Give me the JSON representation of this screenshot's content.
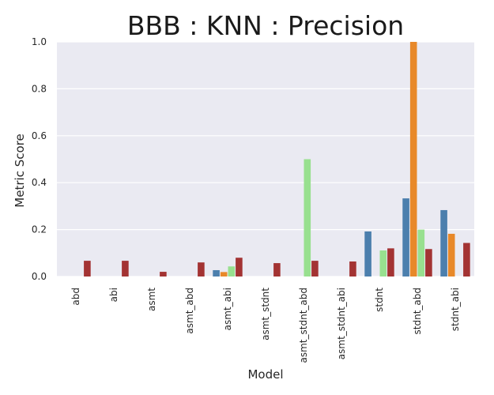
{
  "chart_data": {
    "type": "bar",
    "title": "BBB : KNN : Precision",
    "xlabel": "Model",
    "ylabel": "Metric Score",
    "ylim": [
      0,
      1.0
    ],
    "yticks": [
      "0.0",
      "0.2",
      "0.4",
      "0.6",
      "0.8",
      "1.0"
    ],
    "grid": true,
    "categories": [
      "abd",
      "abi",
      "asmt",
      "asmt_abd",
      "asmt_abi",
      "asmt_stdnt",
      "asmt_stdnt_abd",
      "asmt_stdnt_abi",
      "stdnt",
      "stdnt_abd",
      "stdnt_abi"
    ],
    "series": [
      {
        "color": "#4c7fad",
        "values": [
          0,
          0,
          0,
          0,
          0.027,
          0,
          0,
          0,
          0.192,
          0.333,
          0.283
        ]
      },
      {
        "color": "#e8892a",
        "values": [
          0,
          0,
          0,
          0,
          0.019,
          0,
          0,
          0,
          0,
          1.0,
          0.182
        ]
      },
      {
        "color": "#98e08f",
        "values": [
          0,
          0,
          0,
          0,
          0.043,
          0,
          0.5,
          0,
          0.111,
          0.2,
          0
        ]
      },
      {
        "color": "#a33333",
        "values": [
          0.067,
          0.067,
          0.02,
          0.06,
          0.08,
          0.057,
          0.067,
          0.064,
          0.12,
          0.117,
          0.143
        ]
      }
    ]
  }
}
